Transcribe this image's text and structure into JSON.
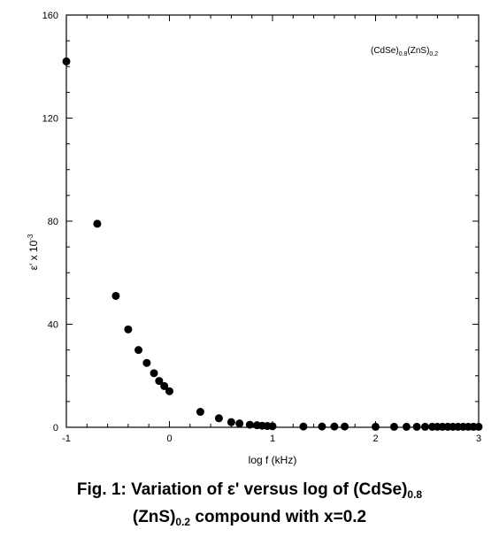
{
  "chart_data": {
    "type": "scatter",
    "title": "",
    "xlabel": "log f (kHz)",
    "ylabel": "ε' x 10",
    "ylabel_sup": "-3",
    "xlim": [
      -1,
      3
    ],
    "ylim": [
      0,
      160
    ],
    "xticks": [
      -1,
      0,
      1,
      2,
      3
    ],
    "xtick_labels": [
      "-1",
      "0",
      "1",
      "2",
      "3"
    ],
    "yticks": [
      0,
      40,
      80,
      120,
      160
    ],
    "ytick_labels": [
      "0",
      "40",
      "80",
      "120",
      "160"
    ],
    "grid": false,
    "legend": {
      "placement": "top-right",
      "parts": [
        "(CdSe)",
        "0.8",
        "(ZnS)",
        "0.2"
      ]
    },
    "series": [
      {
        "marker_color": "#000000",
        "points": [
          [
            -1.0,
            142
          ],
          [
            -0.7,
            79
          ],
          [
            -0.52,
            51
          ],
          [
            -0.4,
            38
          ],
          [
            -0.3,
            30
          ],
          [
            -0.22,
            25
          ],
          [
            -0.15,
            21
          ],
          [
            -0.1,
            18
          ],
          [
            -0.05,
            16
          ],
          [
            0.0,
            14
          ],
          [
            0.3,
            6
          ],
          [
            0.48,
            3.5
          ],
          [
            0.6,
            2
          ],
          [
            0.68,
            1.5
          ],
          [
            0.78,
            1
          ],
          [
            0.85,
            0.8
          ],
          [
            0.9,
            0.6
          ],
          [
            0.95,
            0.5
          ],
          [
            1.0,
            0.4
          ],
          [
            1.3,
            0.3
          ],
          [
            1.48,
            0.3
          ],
          [
            1.6,
            0.3
          ],
          [
            1.7,
            0.3
          ],
          [
            2.0,
            0.2
          ],
          [
            2.18,
            0.2
          ],
          [
            2.3,
            0.2
          ],
          [
            2.4,
            0.2
          ],
          [
            2.48,
            0.2
          ],
          [
            2.55,
            0.2
          ],
          [
            2.6,
            0.2
          ],
          [
            2.65,
            0.2
          ],
          [
            2.7,
            0.2
          ],
          [
            2.75,
            0.2
          ],
          [
            2.8,
            0.2
          ],
          [
            2.85,
            0.2
          ],
          [
            2.9,
            0.2
          ],
          [
            2.95,
            0.2
          ],
          [
            3.0,
            0.2
          ]
        ]
      }
    ]
  },
  "caption": {
    "line1_main": "Fig. 1: Variation of ε' versus log of (CdSe)",
    "line1_sub": "0.8",
    "line2_main": "(ZnS)",
    "line2_sub": "0.2",
    "line2_rest": " compound with x=0.2"
  }
}
